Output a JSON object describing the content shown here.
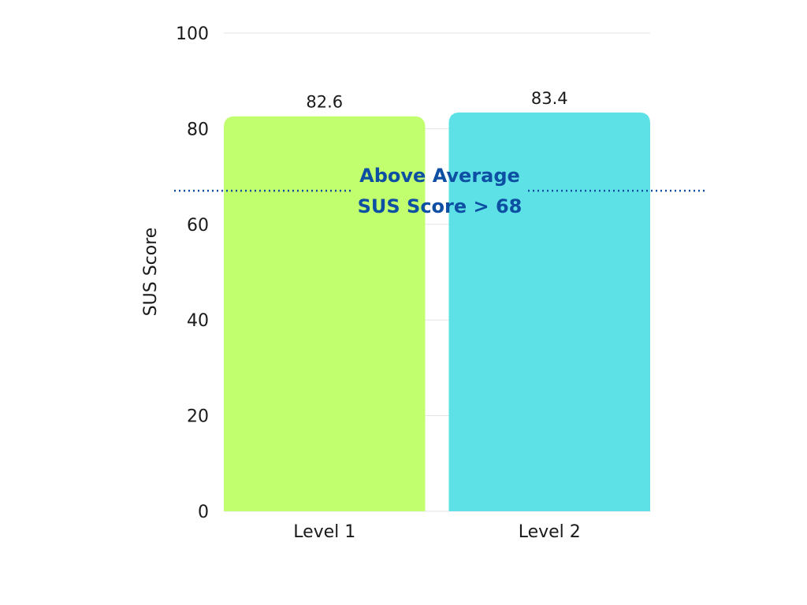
{
  "chart_data": {
    "type": "bar",
    "categories": [
      "Level 1",
      "Level 2"
    ],
    "values": [
      82.6,
      83.4
    ],
    "value_labels": [
      "82.6",
      "83.4"
    ],
    "title": "",
    "xlabel": "",
    "ylabel": "SUS Score",
    "ylim": [
      0,
      100
    ],
    "yticks": [
      0,
      20,
      40,
      60,
      80,
      100
    ],
    "grid": true,
    "bar_colors": [
      "#c2ff6e",
      "#5ee1e6"
    ],
    "reference_line": {
      "value": 70,
      "style": "dotted",
      "color": "#0d4fa3",
      "label_line1": "Above Average",
      "label_line2": "SUS Score > 68"
    }
  }
}
